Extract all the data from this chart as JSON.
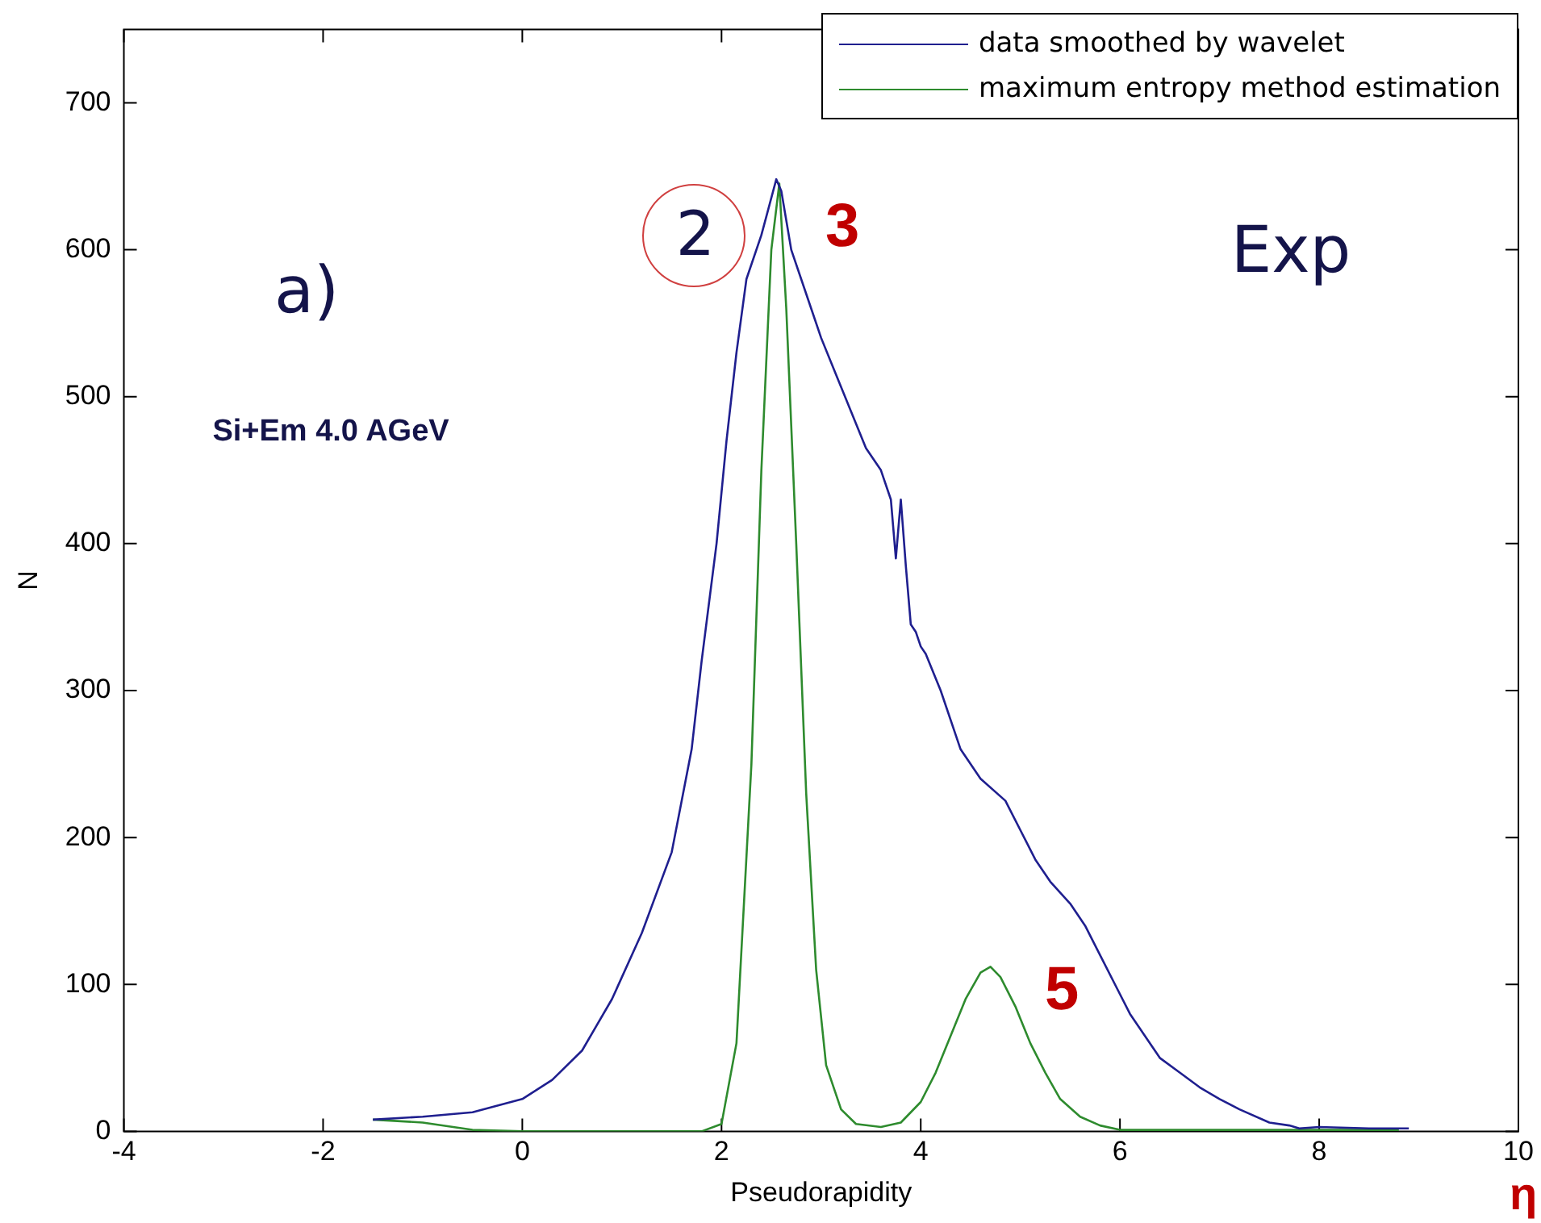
{
  "chart_data": {
    "type": "line",
    "xlabel": "Pseudorapidity",
    "ylabel": "N",
    "xlim": [
      -4,
      10
    ],
    "xticks": [
      -4,
      -2,
      0,
      2,
      4,
      6,
      8,
      10
    ],
    "ylim": [
      0,
      750
    ],
    "yticks": [
      0,
      100,
      200,
      300,
      400,
      500,
      600,
      700
    ],
    "grid": false,
    "legend": "top right",
    "marker": "none",
    "line_style": "solid",
    "annotations": [
      "a)",
      "Si+Em 4.0 AGeV",
      "Exp",
      "2",
      "3",
      "5",
      "η"
    ],
    "series": [
      {
        "name": "data smoothed by wavelet",
        "color": "#1f1f8f",
        "x": [
          -1.5,
          -1,
          -0.5,
          0,
          0.3,
          0.6,
          0.9,
          1.2,
          1.5,
          1.7,
          1.8,
          1.95,
          2.05,
          2.15,
          2.25,
          2.4,
          2.55,
          2.6,
          2.7,
          2.85,
          3.0,
          3.15,
          3.3,
          3.45,
          3.6,
          3.7,
          3.75,
          3.8,
          3.85,
          3.9,
          3.95,
          4.0,
          4.05,
          4.2,
          4.4,
          4.6,
          4.85,
          5.0,
          5.15,
          5.3,
          5.5,
          5.65,
          5.8,
          5.95,
          6.1,
          6.25,
          6.4,
          6.6,
          6.8,
          7.0,
          7.2,
          7.5,
          7.7,
          7.8,
          8.0,
          8.5,
          8.9
        ],
        "values": [
          8,
          10,
          13,
          22,
          35,
          55,
          90,
          135,
          190,
          260,
          320,
          400,
          470,
          530,
          580,
          610,
          648,
          640,
          600,
          570,
          540,
          515,
          490,
          465,
          450,
          430,
          390,
          430,
          385,
          345,
          340,
          330,
          325,
          300,
          260,
          240,
          225,
          205,
          185,
          170,
          155,
          140,
          120,
          100,
          80,
          65,
          50,
          40,
          30,
          22,
          15,
          6,
          4,
          2,
          3,
          2,
          2
        ]
      },
      {
        "name": "maximum entropy method estimation",
        "color": "#2e8b2e",
        "x": [
          -1.5,
          -1,
          -0.5,
          0,
          1,
          1.8,
          2.0,
          2.15,
          2.3,
          2.4,
          2.5,
          2.58,
          2.65,
          2.75,
          2.85,
          2.95,
          3.05,
          3.2,
          3.35,
          3.6,
          3.8,
          4.0,
          4.15,
          4.3,
          4.45,
          4.6,
          4.7,
          4.8,
          4.95,
          5.1,
          5.25,
          5.4,
          5.6,
          5.8,
          6.0,
          7,
          8,
          8.8
        ],
        "values": [
          8,
          6,
          1,
          0,
          0,
          0,
          5,
          60,
          250,
          450,
          600,
          645,
          560,
          400,
          230,
          110,
          45,
          15,
          5,
          3,
          6,
          20,
          40,
          65,
          90,
          108,
          112,
          105,
          85,
          60,
          40,
          22,
          10,
          4,
          1,
          1,
          1,
          1
        ]
      }
    ]
  }
}
